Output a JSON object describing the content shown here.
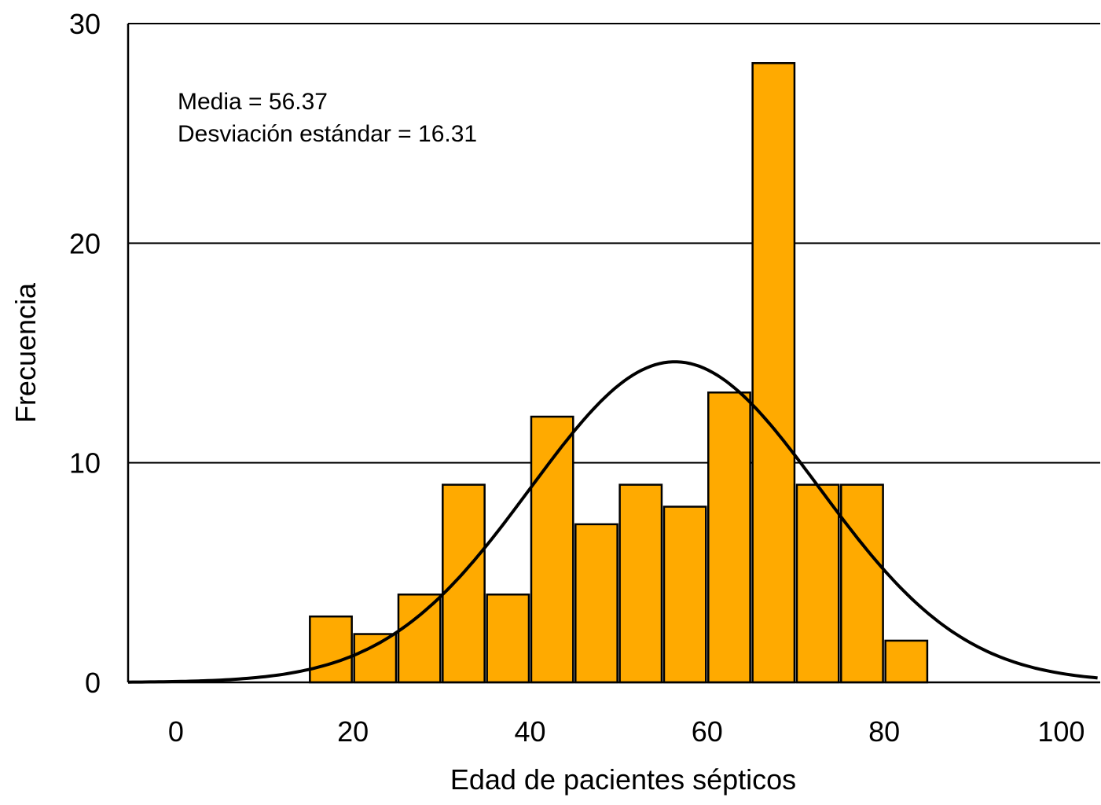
{
  "chart_data": {
    "type": "bar",
    "subtype": "histogram",
    "xlabel": "Edad de pacientes sépticos",
    "ylabel": "Frecuencia",
    "xlim": [
      -5.4,
      104.4
    ],
    "ylim": [
      0,
      30
    ],
    "x_ticks": [
      0,
      20,
      40,
      60,
      80,
      100
    ],
    "y_ticks": [
      0,
      10,
      20,
      30
    ],
    "grid": "horizontal",
    "bar_color": "#FFAA00",
    "bins": [
      {
        "start": 15,
        "end": 20,
        "value": 3
      },
      {
        "start": 20,
        "end": 25,
        "value": 2.2
      },
      {
        "start": 25,
        "end": 30,
        "value": 4
      },
      {
        "start": 30,
        "end": 35,
        "value": 9
      },
      {
        "start": 35,
        "end": 40,
        "value": 4
      },
      {
        "start": 40,
        "end": 45,
        "value": 12.1
      },
      {
        "start": 45,
        "end": 50,
        "value": 7.2
      },
      {
        "start": 50,
        "end": 55,
        "value": 9
      },
      {
        "start": 55,
        "end": 60,
        "value": 8
      },
      {
        "start": 60,
        "end": 65,
        "value": 13.2
      },
      {
        "start": 65,
        "end": 70,
        "value": 28.2
      },
      {
        "start": 70,
        "end": 75,
        "value": 9
      },
      {
        "start": 75,
        "end": 80,
        "value": 9
      },
      {
        "start": 80,
        "end": 85,
        "value": 1.9
      }
    ],
    "normal_curve": {
      "mean": 56.37,
      "sd": 16.31,
      "peak": 14.6
    },
    "annotations": [
      "Media = 56.37",
      "Desviación estándar = 16.31"
    ]
  }
}
